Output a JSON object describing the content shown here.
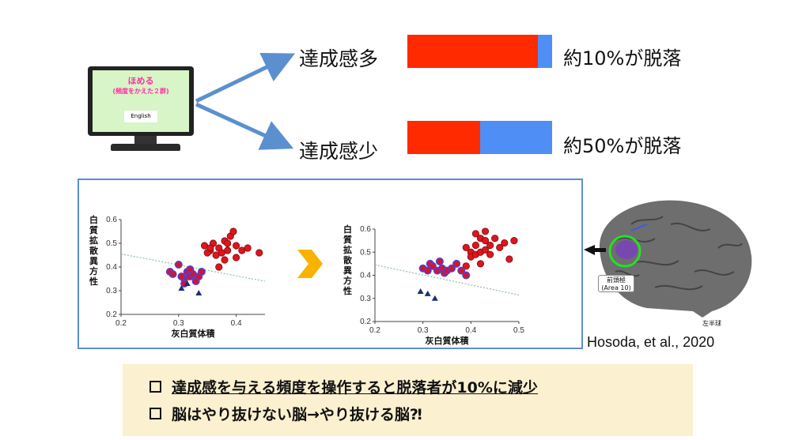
{
  "monitor": {
    "title": "ほめる",
    "subtitle": "(頻度をかえた２群)",
    "button_label": "English"
  },
  "conditions": [
    {
      "label": "達成感多",
      "dropout_fraction": 0.1,
      "result": "約10%が脱落"
    },
    {
      "label": "達成感少",
      "dropout_fraction": 0.5,
      "result": "約50%が脱落"
    }
  ],
  "colors": {
    "retained": "#ff2a00",
    "dropout": "#4f8ef5",
    "arrow": "#5b8fd0",
    "panel_border": "#5b8fd0",
    "summary_bg": "#fbf0cf",
    "chevron": "#f8b200"
  },
  "chart_data": [
    {
      "type": "scatter",
      "xlabel": "灰白質体積",
      "ylabel": "白質拡散異方性",
      "xlim": [
        0.2,
        0.45
      ],
      "ylim": [
        0.2,
        0.6
      ],
      "xticks": [
        "0.2",
        "0.3",
        "0.4"
      ],
      "yticks": [
        "0.2",
        "0.3",
        "0.4",
        "0.5",
        "0.6"
      ],
      "trend": [
        [
          0.2,
          0.455
        ],
        [
          0.45,
          0.34
        ]
      ],
      "series": [
        {
          "marker": "red-circle",
          "points": [
            [
              0.345,
              0.49
            ],
            [
              0.355,
              0.47
            ],
            [
              0.36,
              0.5
            ],
            [
              0.37,
              0.48
            ],
            [
              0.38,
              0.51
            ],
            [
              0.385,
              0.5
            ],
            [
              0.39,
              0.53
            ],
            [
              0.395,
              0.55
            ],
            [
              0.35,
              0.46
            ],
            [
              0.365,
              0.45
            ],
            [
              0.375,
              0.46
            ],
            [
              0.385,
              0.47
            ],
            [
              0.4,
              0.49
            ],
            [
              0.41,
              0.47
            ],
            [
              0.42,
              0.48
            ],
            [
              0.44,
              0.46
            ],
            [
              0.38,
              0.43
            ],
            [
              0.37,
              0.4
            ],
            [
              0.4,
              0.44
            ],
            [
              0.355,
              0.48
            ]
          ]
        },
        {
          "marker": "purple-circle",
          "points": [
            [
              0.285,
              0.38
            ],
            [
              0.29,
              0.37
            ],
            [
              0.3,
              0.41
            ],
            [
              0.31,
              0.35
            ],
            [
              0.315,
              0.38
            ],
            [
              0.32,
              0.36
            ],
            [
              0.325,
              0.37
            ],
            [
              0.33,
              0.34
            ],
            [
              0.335,
              0.36
            ],
            [
              0.31,
              0.33
            ],
            [
              0.305,
              0.36
            ],
            [
              0.32,
              0.39
            ],
            [
              0.34,
              0.38
            ]
          ]
        },
        {
          "marker": "navy-triangle",
          "points": [
            [
              0.305,
              0.31
            ],
            [
              0.315,
              0.33
            ],
            [
              0.335,
              0.29
            ]
          ]
        }
      ]
    },
    {
      "type": "scatter",
      "xlabel": "灰白質体積",
      "ylabel": "白質拡散異方性",
      "xlim": [
        0.2,
        0.5
      ],
      "ylim": [
        0.2,
        0.6
      ],
      "xticks": [
        "0.2",
        "0.3",
        "0.4",
        "0.5"
      ],
      "yticks": [
        "0.2",
        "0.3",
        "0.4",
        "0.5",
        "0.6"
      ],
      "trend": [
        [
          0.2,
          0.445
        ],
        [
          0.5,
          0.315
        ]
      ],
      "series": [
        {
          "marker": "red-circle",
          "points": [
            [
              0.39,
              0.52
            ],
            [
              0.4,
              0.5
            ],
            [
              0.41,
              0.53
            ],
            [
              0.42,
              0.56
            ],
            [
              0.43,
              0.55
            ],
            [
              0.44,
              0.53
            ],
            [
              0.45,
              0.56
            ],
            [
              0.47,
              0.54
            ],
            [
              0.49,
              0.55
            ],
            [
              0.4,
              0.48
            ],
            [
              0.41,
              0.49
            ],
            [
              0.42,
              0.5
            ],
            [
              0.43,
              0.51
            ],
            [
              0.44,
              0.49
            ],
            [
              0.46,
              0.52
            ],
            [
              0.48,
              0.47
            ],
            [
              0.39,
              0.44
            ],
            [
              0.42,
              0.45
            ],
            [
              0.41,
              0.58
            ],
            [
              0.43,
              0.59
            ]
          ]
        },
        {
          "marker": "purple-circle",
          "points": [
            [
              0.3,
              0.43
            ],
            [
              0.31,
              0.42
            ],
            [
              0.315,
              0.45
            ],
            [
              0.32,
              0.44
            ],
            [
              0.33,
              0.42
            ],
            [
              0.34,
              0.43
            ],
            [
              0.345,
              0.41
            ],
            [
              0.35,
              0.42
            ],
            [
              0.36,
              0.43
            ],
            [
              0.37,
              0.45
            ],
            [
              0.38,
              0.42
            ],
            [
              0.39,
              0.4
            ],
            [
              0.335,
              0.46
            ]
          ]
        },
        {
          "marker": "navy-triangle",
          "points": [
            [
              0.295,
              0.33
            ],
            [
              0.31,
              0.32
            ],
            [
              0.325,
              0.3
            ]
          ]
        }
      ]
    }
  ],
  "brain": {
    "label_line1": "前頭極",
    "label_line2": "(Area 10)",
    "hemisphere": "左半球"
  },
  "citation": "Hosoda, et al., 2020",
  "summary": [
    "達成感を与える頻度を操作すると脱落者が10%に減少",
    "脳はやり抜けない脳→やり抜ける脳⁈"
  ]
}
